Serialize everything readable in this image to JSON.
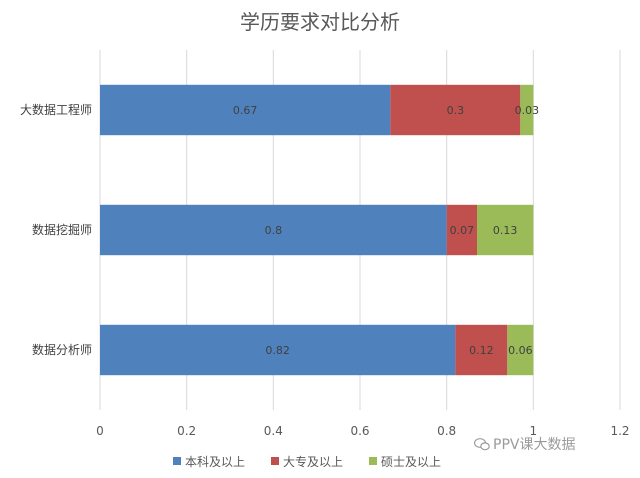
{
  "chart_data": {
    "type": "bar",
    "orientation": "horizontal",
    "stacked": true,
    "title": "学历要求对比分析",
    "categories": [
      "大数据工程师",
      "数据挖掘师",
      "数据分析师"
    ],
    "series": [
      {
        "name": "本科及以上",
        "color": "#4f81bd",
        "values": [
          0.67,
          0.8,
          0.82
        ]
      },
      {
        "name": "大专及以上",
        "color": "#c0504d",
        "values": [
          0.3,
          0.07,
          0.12
        ]
      },
      {
        "name": "硕士及以上",
        "color": "#9bbb59",
        "values": [
          0.03,
          0.13,
          0.06
        ]
      }
    ],
    "xlim": [
      0,
      1.2
    ],
    "xticks": [
      "0",
      "0.2",
      "0.4",
      "0.6",
      "0.8",
      "1",
      "1.2"
    ],
    "grid": true,
    "legend_position": "bottom"
  },
  "watermark": {
    "text": "PPV课大数据",
    "icon": "wechat-icon"
  }
}
